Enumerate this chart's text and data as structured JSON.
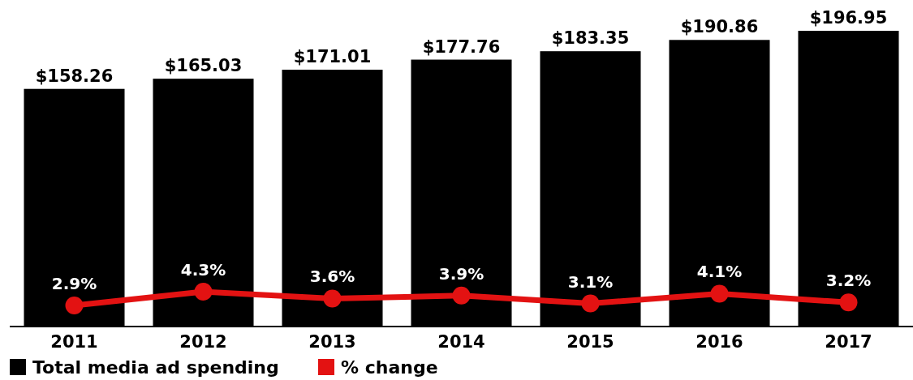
{
  "chart_data": {
    "type": "bar",
    "categories": [
      "2011",
      "2012",
      "2013",
      "2014",
      "2015",
      "2016",
      "2017"
    ],
    "series": [
      {
        "name": "Total media ad spending",
        "color": "#000000",
        "values": [
          158.26,
          165.03,
          171.01,
          177.76,
          183.35,
          190.86,
          196.95
        ],
        "value_labels": [
          "$158.26",
          "$165.03",
          "$171.01",
          "$177.76",
          "$183.35",
          "$190.86",
          "$196.95"
        ]
      },
      {
        "name": "% change",
        "type": "line",
        "axis": "y2",
        "color": "#e31212",
        "values": [
          2.9,
          4.3,
          3.6,
          3.9,
          3.1,
          4.1,
          3.2
        ],
        "value_labels": [
          "2.9%",
          "4.3%",
          "3.6%",
          "3.9%",
          "3.1%",
          "4.1%",
          "3.2%"
        ]
      }
    ],
    "legend": "bottom left",
    "marker": "circle",
    "grid": false
  }
}
